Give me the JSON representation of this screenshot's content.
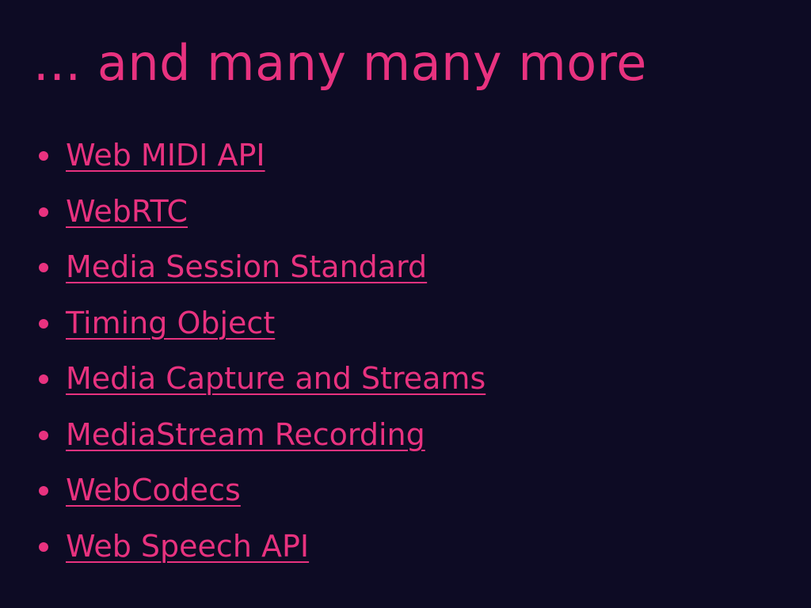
{
  "slide": {
    "title": "... and many many more",
    "links": [
      {
        "label": "Web MIDI API"
      },
      {
        "label": "WebRTC"
      },
      {
        "label": "Media Session Standard"
      },
      {
        "label": "Timing Object"
      },
      {
        "label": "Media Capture and Streams"
      },
      {
        "label": "MediaStream Recording"
      },
      {
        "label": "WebCodecs"
      },
      {
        "label": "Web Speech API"
      }
    ]
  },
  "colors": {
    "background": "#0d0b24",
    "accent": "#e8327f"
  }
}
